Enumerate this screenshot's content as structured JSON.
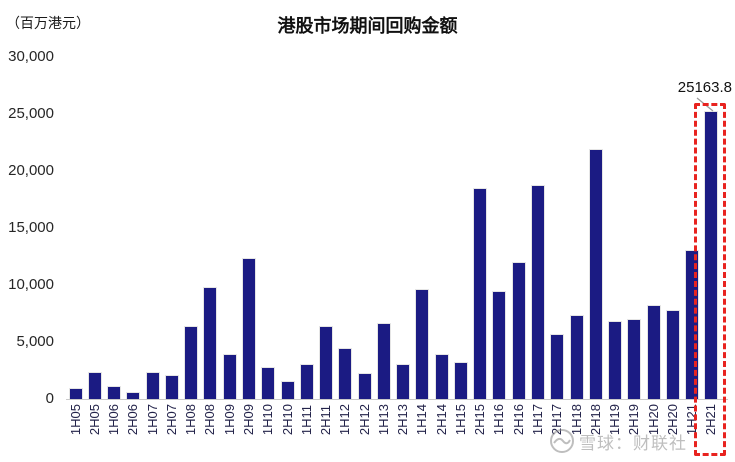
{
  "header": {
    "unit_label": "（百万港元）",
    "title": "港股市场期间回购金额"
  },
  "chart_data": {
    "type": "bar",
    "title": "港股市场期间回购金额",
    "ylabel": "百万港元",
    "xlabel": "",
    "grid": false,
    "legend": "none",
    "ylim": [
      0,
      30000
    ],
    "ytick_values": [
      30000,
      25000,
      20000,
      15000,
      10000,
      5000,
      0
    ],
    "ytick_labels": [
      "30,000",
      "25,000",
      "20,000",
      "15,000",
      "10,000",
      "5,000",
      "0"
    ],
    "bar_color": "#1b1b83",
    "categories": [
      "1H05",
      "2H05",
      "1H06",
      "2H06",
      "1H07",
      "2H07",
      "1H08",
      "2H08",
      "1H09",
      "2H09",
      "1H10",
      "2H10",
      "1H11",
      "2H11",
      "1H12",
      "2H12",
      "1H13",
      "2H13",
      "1H14",
      "2H14",
      "1H15",
      "2H15",
      "1H16",
      "2H16",
      "1H17",
      "2H17",
      "1H18",
      "2H18",
      "1H19",
      "2H19",
      "1H20",
      "2H20",
      "1H21",
      "2H21"
    ],
    "values": [
      900,
      2250,
      1050,
      500,
      2250,
      2000,
      6300,
      9700,
      3850,
      12300,
      2750,
      1450,
      2950,
      6300,
      4400,
      2150,
      6550,
      3000,
      9600,
      3900,
      3200,
      18400,
      9350,
      11900,
      18650,
      5600,
      7300,
      21850,
      6750,
      6900,
      8200,
      7700,
      12950,
      25163.8
    ],
    "annotation": {
      "text": "25163.8",
      "target_category": "2H21"
    },
    "highlight": {
      "target_category": "2H21",
      "style": "red-dashed-box",
      "color": "#e8231f"
    }
  },
  "watermark": {
    "logo": "snowball-circle-logo",
    "text": "雪球：财联社"
  }
}
